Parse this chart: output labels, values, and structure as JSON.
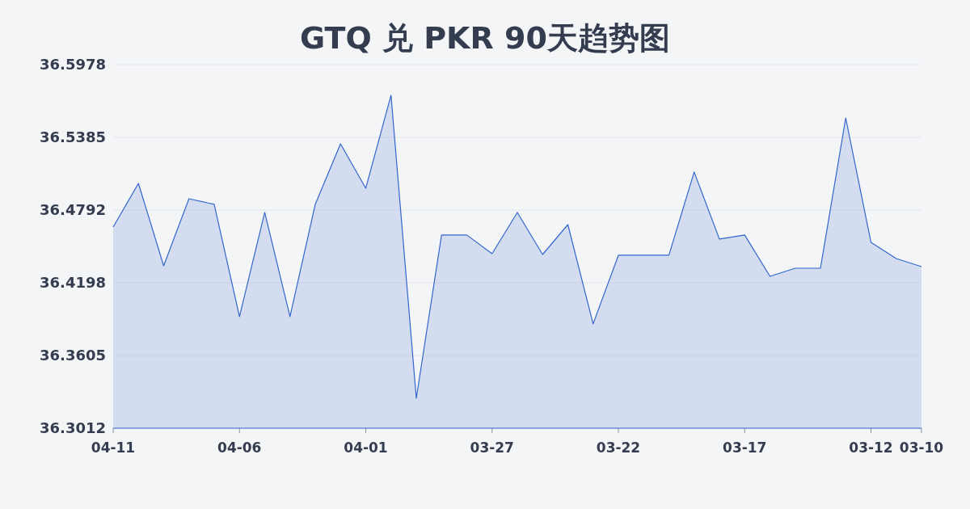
{
  "chart_data": {
    "type": "area",
    "title": "GTQ 兑 PKR 90天趋势图",
    "categories": [
      "04-11",
      null,
      null,
      null,
      null,
      "04-06",
      null,
      null,
      null,
      null,
      "04-01",
      null,
      null,
      null,
      null,
      "03-27",
      null,
      null,
      null,
      null,
      "03-22",
      null,
      null,
      null,
      null,
      "03-17",
      null,
      null,
      null,
      null,
      "03-12",
      null,
      "03-10"
    ],
    "values": [
      36.4653,
      36.5009,
      36.4337,
      36.4884,
      36.4838,
      36.3922,
      36.4772,
      36.3922,
      36.4838,
      36.5332,
      36.497,
      36.5728,
      36.3256,
      36.4588,
      36.4588,
      36.4436,
      36.4772,
      36.4429,
      36.4673,
      36.3863,
      36.4423,
      36.4423,
      36.4423,
      36.5102,
      36.4555,
      36.4588,
      36.4251,
      36.4317,
      36.4317,
      36.5543,
      36.4528,
      36.4396,
      36.433
    ],
    "color": "#3366cc",
    "ylim": [
      36.3012,
      36.5978
    ],
    "yticks": [
      36.3012,
      36.3605,
      36.4198,
      36.4792,
      36.5385,
      36.5978
    ],
    "grid": "y"
  }
}
